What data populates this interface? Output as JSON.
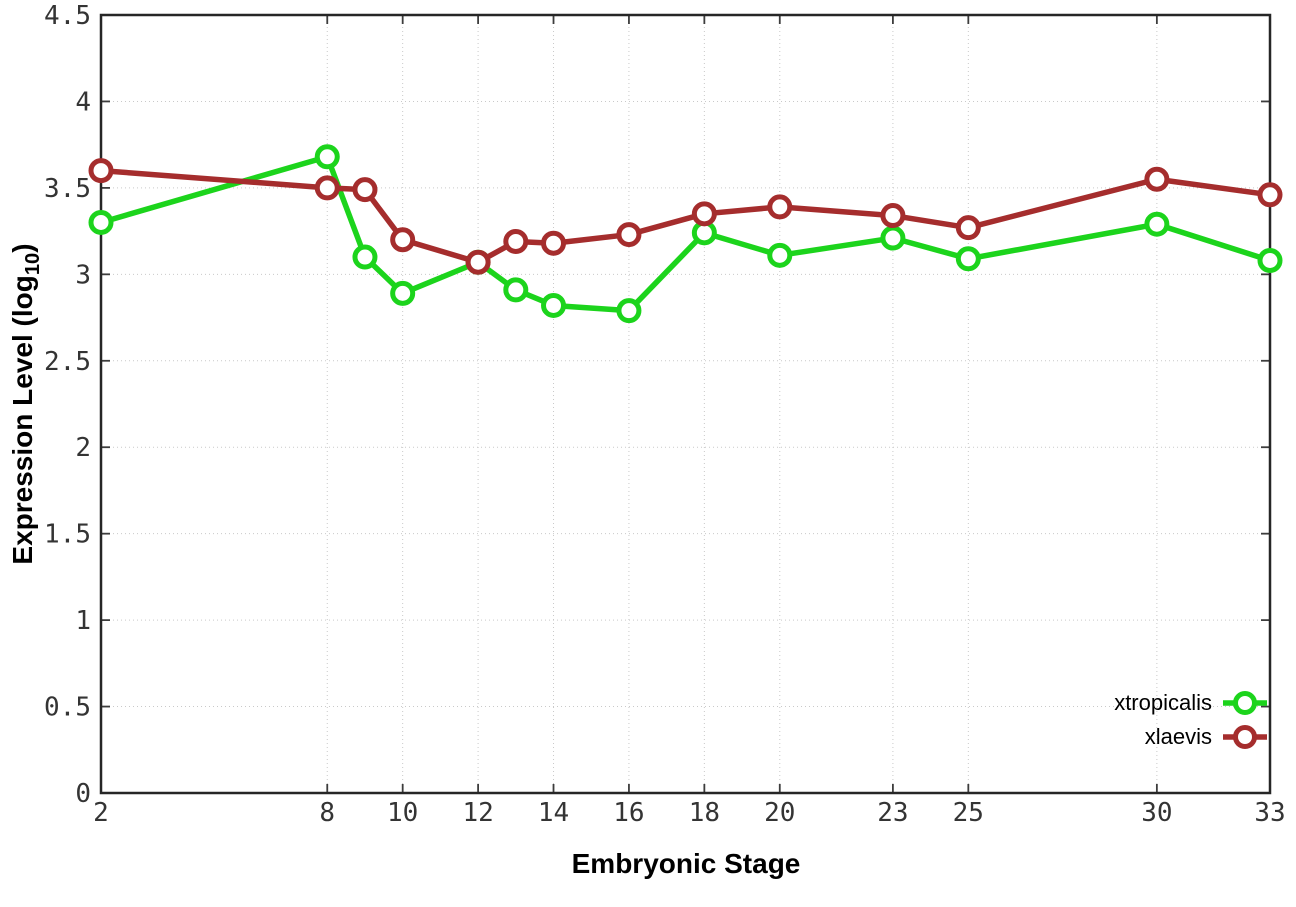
{
  "chart_data": {
    "type": "line",
    "title": "",
    "xlabel": "Embryonic Stage",
    "ylabel": "Expression Level (log10)",
    "ylabel_parts": {
      "prefix": "Expression Level (log",
      "sub": "10",
      "suffix": ")"
    },
    "xlim": [
      2,
      33
    ],
    "ylim": [
      0,
      4.5
    ],
    "grid": true,
    "legend_position": "bottom-right",
    "x": [
      2,
      8,
      9,
      10,
      12,
      13,
      14,
      16,
      18,
      20,
      23,
      25,
      30,
      33
    ],
    "xtick_labels": [
      "2",
      "8",
      "10",
      "12",
      "14",
      "16",
      "18",
      "20",
      "23",
      "25",
      "30",
      "33"
    ],
    "ytick_labels": [
      "0",
      "0.5",
      "1",
      "1.5",
      "2",
      "2.5",
      "3",
      "3.5",
      "4",
      "4.5"
    ],
    "series": [
      {
        "name": "xtropicalis",
        "color": "#1cd41c",
        "values": [
          3.3,
          3.68,
          3.1,
          2.89,
          3.07,
          2.91,
          2.82,
          2.79,
          3.24,
          3.11,
          3.21,
          3.09,
          3.29,
          3.08
        ]
      },
      {
        "name": "xlaevis",
        "color": "#a52d2d",
        "values": [
          3.6,
          3.5,
          3.49,
          3.2,
          3.07,
          3.19,
          3.18,
          3.23,
          3.35,
          3.39,
          3.34,
          3.27,
          3.55,
          3.46
        ]
      }
    ]
  },
  "colors": {
    "background": "#ffffff",
    "axis_border": "#262626",
    "tick_mark": "#3d3d3d",
    "grid_line": "#c9c9c9",
    "tick_text": "#343434",
    "marker_fill": "#ffffff"
  }
}
